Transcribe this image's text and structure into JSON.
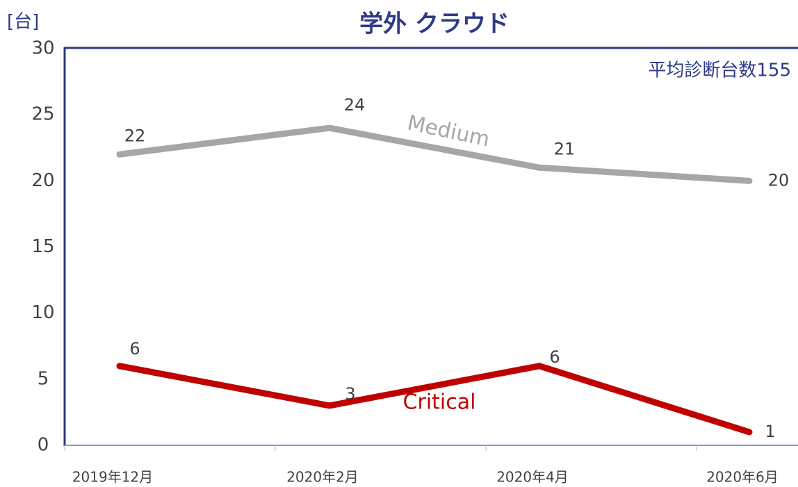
{
  "chart_data": {
    "type": "line",
    "title": "学外 クラウド",
    "y_label": "[台]",
    "annotation": "平均診断台数155",
    "categories": [
      "2019年12月",
      "2020年2月",
      "2020年4月",
      "2020年6月"
    ],
    "series": [
      {
        "name": "Medium",
        "color": "#a6a6a6",
        "values": [
          22,
          24,
          21,
          20
        ]
      },
      {
        "name": "Critical",
        "color": "#c00000",
        "values": [
          6,
          3,
          6,
          1
        ]
      }
    ],
    "ylim": [
      0,
      30
    ],
    "yticks": [
      0,
      5,
      10,
      15,
      20,
      25,
      30
    ],
    "grid": false
  }
}
